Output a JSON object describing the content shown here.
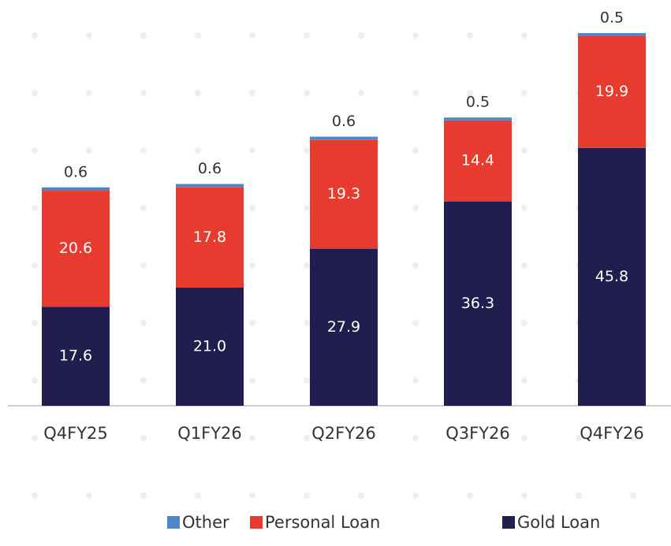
{
  "chart_data": {
    "type": "stacked_bar",
    "categories": [
      "Q4FY25",
      "Q1FY26",
      "Q2FY26",
      "Q3FY26",
      "Q4FY26"
    ],
    "series": [
      {
        "name": "Gold Loan",
        "color": "#211d4e",
        "values": [
          17.6,
          21.0,
          27.9,
          36.3,
          45.8
        ],
        "value_labels": [
          "17.6",
          "21.0",
          "27.9",
          "36.3",
          "45.8"
        ]
      },
      {
        "name": "Personal Loan",
        "color": "#e63b2e",
        "values": [
          20.6,
          17.8,
          19.3,
          14.4,
          19.9
        ]
      },
      {
        "name": "Other",
        "color": "#4f86c6",
        "values": [
          0.6,
          0.6,
          0.6,
          0.5,
          0.5
        ]
      }
    ],
    "legend": "bottom"
  }
}
